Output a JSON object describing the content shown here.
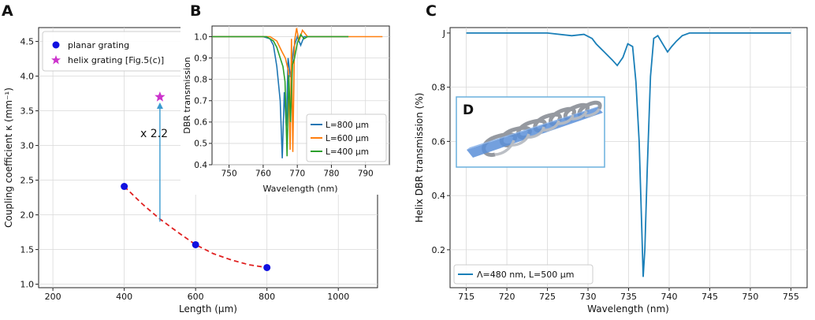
{
  "panel_labels": {
    "a": "A",
    "b": "B",
    "c": "C",
    "d": "D"
  },
  "chart_data": [
    {
      "id": "A",
      "type": "scatter",
      "xlabel": "Length (μm)",
      "ylabel": "Coupling coefficient κ (mm⁻¹)",
      "xlim": [
        160,
        1110
      ],
      "ylim": [
        0.95,
        4.7
      ],
      "xticks": [
        200,
        400,
        600,
        800,
        1000
      ],
      "yticks": [
        1.0,
        1.5,
        2.0,
        2.5,
        3.0,
        3.5,
        4.0,
        4.5
      ],
      "grid": true,
      "legend": "top-left",
      "series": [
        {
          "name": "planar grating",
          "color": "#1010e0",
          "marker": "circle",
          "x": [
            400,
            600,
            800
          ],
          "y": [
            2.41,
            1.57,
            1.24
          ]
        },
        {
          "name": "helix grating [Fig.5(c)]",
          "color": "#cc33cc",
          "marker": "star",
          "x": [
            500
          ],
          "y": [
            3.7
          ]
        }
      ],
      "fit_curve": {
        "color": "#e02020",
        "style": "dashed",
        "x": [
          400,
          450,
          500,
          550,
          600,
          650,
          700,
          750,
          800
        ],
        "y": [
          2.41,
          2.16,
          1.94,
          1.75,
          1.57,
          1.44,
          1.35,
          1.28,
          1.24
        ]
      },
      "arrow": {
        "x": 500,
        "from": 1.9,
        "to": 3.62,
        "color": "#3a9ad0"
      },
      "annotation": {
        "text": "x 2.2",
        "x": 445,
        "y": 3.12
      }
    },
    {
      "id": "B",
      "type": "line",
      "xlabel": "Wavelength (nm)",
      "ylabel": "DBR transmission",
      "xlim": [
        745,
        797
      ],
      "ylim": [
        0.4,
        1.05
      ],
      "xticks": [
        750,
        760,
        770,
        780,
        790
      ],
      "yticks": [
        0.4,
        0.5,
        0.6,
        0.7,
        0.8,
        0.9,
        1.0
      ],
      "grid": true,
      "legend": "bottom-right",
      "series": [
        {
          "name": "L=800 μm",
          "color": "#1f77b4",
          "x": [
            745,
            760,
            762,
            763,
            764,
            765,
            765.6,
            766.2,
            766.8,
            767.3,
            768,
            769,
            770,
            771,
            772,
            775,
            785
          ],
          "y": [
            1.0,
            1.0,
            0.99,
            0.96,
            0.86,
            0.7,
            0.43,
            0.74,
            0.58,
            0.9,
            0.81,
            0.95,
            1.0,
            0.96,
            1.0,
            1.0,
            1.0
          ]
        },
        {
          "name": "L=600 μm",
          "color": "#ff7f0e",
          "x": [
            745,
            762,
            764,
            765.5,
            766.5,
            767.4,
            767.9,
            768.3,
            768.7,
            769.2,
            769.8,
            770.5,
            771.5,
            773,
            785,
            795
          ],
          "y": [
            1.0,
            1.0,
            0.98,
            0.93,
            0.9,
            0.84,
            0.47,
            0.99,
            0.46,
            0.98,
            1.04,
            0.98,
            1.03,
            1.0,
            1.0,
            1.0
          ]
        },
        {
          "name": "L=400 μm",
          "color": "#2ca02c",
          "x": [
            745,
            761,
            763,
            764,
            765,
            765.8,
            766.4,
            767,
            767.5,
            768,
            768.6,
            769.2,
            770,
            771,
            772,
            773,
            778,
            785
          ],
          "y": [
            1.0,
            1.0,
            0.98,
            0.95,
            0.9,
            0.86,
            0.79,
            0.44,
            0.82,
            0.6,
            0.87,
            0.9,
            0.97,
            1.01,
            0.99,
            1.0,
            1.0,
            1.0
          ]
        }
      ]
    },
    {
      "id": "C",
      "type": "line",
      "xlabel": "Wavelength (nm)",
      "ylabel": "Helix DBR transmission (%)",
      "xlim": [
        713,
        757
      ],
      "ylim": [
        0.06,
        1.02
      ],
      "xticks": [
        715,
        720,
        725,
        730,
        735,
        740,
        745,
        750,
        755
      ],
      "yticks": [
        0.2,
        0.4,
        0.6,
        0.8
      ],
      "top_tick_label": "J",
      "grid": true,
      "legend": "bottom-left",
      "series": [
        {
          "name": "Λ=480 nm, L=500 μm",
          "color": "#1a7fb8",
          "x": [
            715,
            725,
            728,
            729.5,
            730.5,
            731,
            732,
            733,
            733.6,
            734.3,
            734.9,
            735.5,
            735.9,
            736.3,
            736.6,
            736.8,
            737.0,
            737.3,
            737.7,
            738.1,
            738.6,
            739.2,
            739.8,
            740.3,
            740.9,
            741.6,
            742.5,
            745,
            755
          ],
          "y": [
            1.0,
            1.0,
            0.99,
            0.995,
            0.98,
            0.96,
            0.93,
            0.9,
            0.88,
            0.91,
            0.96,
            0.95,
            0.82,
            0.6,
            0.3,
            0.1,
            0.2,
            0.5,
            0.84,
            0.98,
            0.99,
            0.96,
            0.93,
            0.95,
            0.97,
            0.99,
            1.0,
            1.0,
            1.0
          ]
        }
      ]
    }
  ]
}
